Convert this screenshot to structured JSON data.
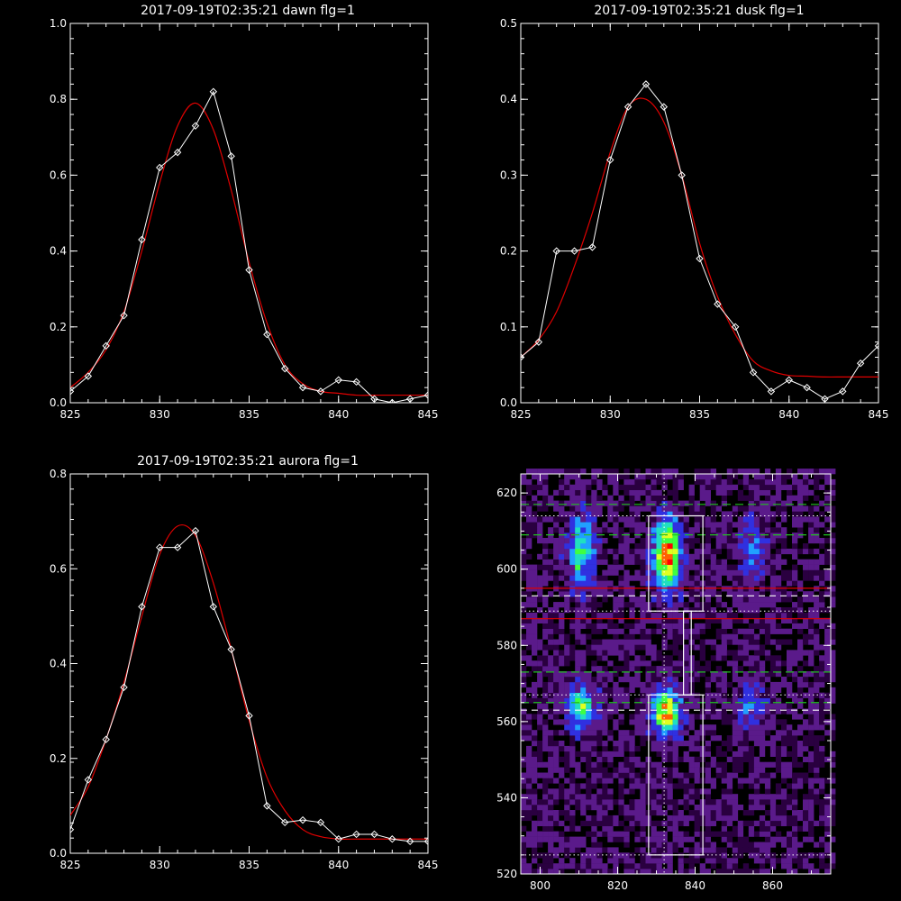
{
  "chart_data": [
    {
      "type": "line",
      "title": "2017-09-19T02:35:21 dawn flg=1",
      "xlim": [
        825,
        845
      ],
      "ylim": [
        0,
        1.0
      ],
      "xticks": [
        "825",
        "830",
        "835",
        "840",
        "845"
      ],
      "yticks": [
        "0.0",
        "0.2",
        "0.4",
        "0.6",
        "0.8",
        "1.0"
      ],
      "colors": {
        "data": "#ffffff",
        "fit": "#e00000"
      },
      "series": [
        {
          "marker": "diamond",
          "x": [
            825,
            826,
            827,
            828,
            829,
            830,
            831,
            832,
            833,
            834,
            835,
            836,
            837,
            838,
            839,
            840,
            841,
            842,
            843,
            844,
            845
          ],
          "y": [
            0.03,
            0.07,
            0.15,
            0.23,
            0.43,
            0.62,
            0.66,
            0.73,
            0.82,
            0.65,
            0.35,
            0.18,
            0.09,
            0.04,
            0.03,
            0.06,
            0.055,
            0.01,
            0.0,
            0.01,
            0.02
          ]
        },
        {
          "style": "fit",
          "x": [
            825,
            826,
            827,
            828,
            829,
            830,
            831,
            832,
            833,
            834,
            835,
            836,
            837,
            838,
            839,
            840,
            841,
            842,
            843,
            844,
            845
          ],
          "y": [
            0.04,
            0.08,
            0.14,
            0.24,
            0.4,
            0.58,
            0.73,
            0.79,
            0.72,
            0.56,
            0.37,
            0.21,
            0.1,
            0.05,
            0.03,
            0.025,
            0.02,
            0.02,
            0.02,
            0.02,
            0.02
          ]
        }
      ]
    },
    {
      "type": "line",
      "title": "2017-09-19T02:35:21 dusk flg=1",
      "xlim": [
        825,
        845
      ],
      "ylim": [
        0,
        0.5
      ],
      "xticks": [
        "825",
        "830",
        "835",
        "840",
        "845"
      ],
      "yticks": [
        "0.0",
        "0.1",
        "0.2",
        "0.3",
        "0.4",
        "0.5"
      ],
      "colors": {
        "data": "#ffffff",
        "fit": "#e00000"
      },
      "series": [
        {
          "marker": "diamond",
          "x": [
            825,
            826,
            827,
            828,
            829,
            830,
            831,
            832,
            833,
            834,
            835,
            836,
            837,
            838,
            839,
            840,
            841,
            842,
            843,
            844,
            845
          ],
          "y": [
            0.06,
            0.08,
            0.2,
            0.2,
            0.205,
            0.32,
            0.39,
            0.42,
            0.39,
            0.3,
            0.19,
            0.13,
            0.1,
            0.04,
            0.015,
            0.03,
            0.02,
            0.005,
            0.015,
            0.052,
            0.075
          ]
        },
        {
          "style": "fit",
          "x": [
            825,
            826,
            827,
            828,
            829,
            830,
            831,
            832,
            833,
            834,
            835,
            836,
            837,
            838,
            839,
            840,
            841,
            842,
            843,
            844,
            845
          ],
          "y": [
            0.06,
            0.083,
            0.12,
            0.18,
            0.25,
            0.33,
            0.39,
            0.4,
            0.37,
            0.3,
            0.21,
            0.14,
            0.09,
            0.055,
            0.042,
            0.036,
            0.035,
            0.034,
            0.034,
            0.034,
            0.034
          ]
        }
      ]
    },
    {
      "type": "line",
      "title": "2017-09-19T02:35:21 aurora flg=1",
      "xlim": [
        825,
        845
      ],
      "ylim": [
        0,
        0.8
      ],
      "xticks": [
        "825",
        "830",
        "835",
        "840",
        "845"
      ],
      "yticks": [
        "0.0",
        "0.2",
        "0.4",
        "0.6",
        "0.8"
      ],
      "colors": {
        "data": "#ffffff",
        "fit": "#e00000"
      },
      "series": [
        {
          "marker": "diamond",
          "x": [
            825,
            826,
            827,
            828,
            829,
            830,
            831,
            832,
            833,
            834,
            835,
            836,
            837,
            838,
            839,
            840,
            841,
            842,
            843,
            844,
            845
          ],
          "y": [
            0.05,
            0.155,
            0.24,
            0.35,
            0.52,
            0.645,
            0.645,
            0.68,
            0.52,
            0.43,
            0.29,
            0.1,
            0.065,
            0.07,
            0.065,
            0.03,
            0.04,
            0.04,
            0.03,
            0.025,
            0.025
          ]
        },
        {
          "style": "fit",
          "x": [
            825,
            826,
            827,
            828,
            829,
            830,
            831,
            832,
            833,
            834,
            835,
            836,
            837,
            838,
            839,
            840,
            841,
            842,
            843,
            844,
            845
          ],
          "y": [
            0.08,
            0.14,
            0.24,
            0.36,
            0.5,
            0.63,
            0.69,
            0.67,
            0.57,
            0.43,
            0.28,
            0.16,
            0.09,
            0.05,
            0.035,
            0.03,
            0.03,
            0.03,
            0.03,
            0.03,
            0.03
          ]
        }
      ]
    },
    {
      "type": "heatmap",
      "title": "",
      "xlim": [
        795,
        875
      ],
      "ylim": [
        520,
        625
      ],
      "xticks": [
        "800",
        "820",
        "840",
        "860"
      ],
      "yticks": [
        "520",
        "540",
        "560",
        "580",
        "600",
        "620"
      ],
      "colormap": [
        "#2a0040",
        "#5a1a8a",
        "#3030e0",
        "#20a0ff",
        "#20e0c0",
        "#40ff40",
        "#e0ff20",
        "#ff6000",
        "#ff0000"
      ],
      "hotspots": [
        {
          "x": 810,
          "y": 604,
          "peak": 0.55
        },
        {
          "x": 832,
          "y": 603,
          "peak": 1.0
        },
        {
          "x": 854,
          "y": 604,
          "peak": 0.3
        },
        {
          "x": 810,
          "y": 563,
          "peak": 0.6
        },
        {
          "x": 832,
          "y": 562,
          "peak": 0.95
        },
        {
          "x": 854,
          "y": 563,
          "peak": 0.3
        }
      ],
      "white_dotted_h": [
        525,
        567,
        589,
        614
      ],
      "white_dotted_v": [
        832
      ],
      "white_dashed_h": [
        563,
        593
      ],
      "green_dashed_h": [
        565,
        573,
        609,
        617
      ],
      "red_solid_h": [
        587,
        595
      ],
      "boxes": [
        {
          "x0": 828,
          "x1": 842,
          "y0": 525,
          "y1": 567
        },
        {
          "x0": 828,
          "x1": 842,
          "y0": 589,
          "y1": 614
        },
        {
          "x0": 837,
          "x1": 839,
          "y0": 567,
          "y1": 589
        }
      ],
      "line_colors": {
        "white": "#ffffff",
        "green": "#20c020",
        "red": "#e00000"
      }
    }
  ]
}
